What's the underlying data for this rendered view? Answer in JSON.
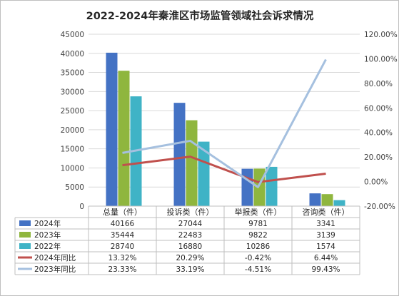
{
  "chart_data": {
    "type": "bar",
    "title": "2022-2024年秦淮区市场监管领域社会诉求情况",
    "categories": [
      "总量（件）",
      "投诉类（件）",
      "举报类（件）",
      "咨询类（件）"
    ],
    "series": [
      {
        "name": "2024年",
        "type": "bar",
        "axis": "left",
        "color": "#4472C4",
        "values": [
          40166,
          27044,
          9781,
          3341
        ],
        "labels": [
          "40166",
          "27044",
          "9781",
          "3341"
        ]
      },
      {
        "name": "2023年",
        "type": "bar",
        "axis": "left",
        "color": "#8FB63E",
        "values": [
          35444,
          22483,
          9822,
          3139
        ],
        "labels": [
          "35444",
          "22483",
          "9822",
          "3139"
        ]
      },
      {
        "name": "2022年",
        "type": "bar",
        "axis": "left",
        "color": "#3FB3C6",
        "values": [
          28740,
          16880,
          10286,
          1574
        ],
        "labels": [
          "28740",
          "16880",
          "10286",
          "1574"
        ]
      },
      {
        "name": "2024年同比",
        "type": "line",
        "axis": "right",
        "color": "#C0504D",
        "values": [
          13.32,
          20.29,
          -0.42,
          6.44
        ],
        "labels": [
          "13.32%",
          "20.29%",
          "-0.42%",
          "6.44%"
        ]
      },
      {
        "name": "2023年同比",
        "type": "line",
        "axis": "right",
        "color": "#A5C0DF",
        "values": [
          23.33,
          33.19,
          -4.51,
          99.43
        ],
        "labels": [
          "23.33%",
          "33.19%",
          "-4.51%",
          "99.43%"
        ]
      }
    ],
    "y_left": {
      "min": 0,
      "max": 45000,
      "step": 5000,
      "ticks": [
        "0",
        "5000",
        "10000",
        "15000",
        "20000",
        "25000",
        "30000",
        "35000",
        "40000",
        "45000"
      ]
    },
    "y_right": {
      "min": -20,
      "max": 120,
      "step": 20,
      "ticks": [
        "-20.00%",
        "0.00%",
        "20.00%",
        "40.00%",
        "60.00%",
        "80.00%",
        "100.00%",
        "120.00%"
      ]
    },
    "grid": true,
    "legend": "data-table"
  }
}
